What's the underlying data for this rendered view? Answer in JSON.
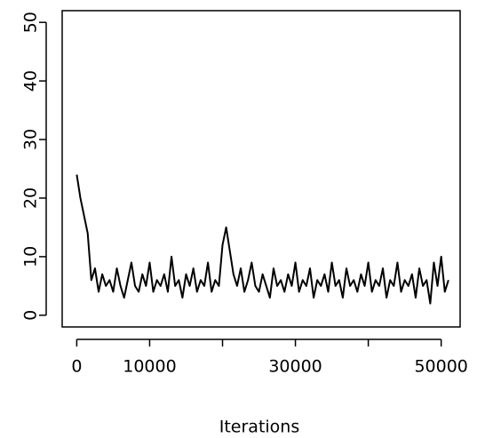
{
  "chart_data": {
    "type": "line",
    "xlabel": "Iterations",
    "x": [
      0,
      500,
      1000,
      1500,
      2000,
      2500,
      3000,
      3500,
      4000,
      4500,
      5000,
      5500,
      6000,
      6500,
      7000,
      7500,
      8000,
      8500,
      9000,
      9500,
      10000,
      10500,
      11000,
      11500,
      12000,
      12500,
      13000,
      13500,
      14000,
      14500,
      15000,
      15500,
      16000,
      16500,
      17000,
      17500,
      18000,
      18500,
      19000,
      19500,
      20000,
      20500,
      21000,
      21500,
      22000,
      22500,
      23000,
      23500,
      24000,
      24500,
      25000,
      25500,
      26000,
      26500,
      27000,
      27500,
      28000,
      28500,
      29000,
      29500,
      30000,
      30500,
      31000,
      31500,
      32000,
      32500,
      33000,
      33500,
      34000,
      34500,
      35000,
      35500,
      36000,
      36500,
      37000,
      37500,
      38000,
      38500,
      39000,
      39500,
      40000,
      40500,
      41000,
      41500,
      42000,
      42500,
      43000,
      43500,
      44000,
      44500,
      45000,
      45500,
      46000,
      46500,
      47000,
      47500,
      48000,
      48500,
      49000,
      49500,
      50000,
      50500,
      51000
    ],
    "values": [
      24,
      20,
      17,
      14,
      6,
      8,
      4,
      7,
      5,
      6,
      4,
      8,
      5,
      3,
      6,
      9,
      5,
      4,
      7,
      5,
      9,
      4,
      6,
      5,
      7,
      4,
      10,
      5,
      6,
      3,
      7,
      5,
      8,
      4,
      6,
      5,
      9,
      4,
      6,
      5,
      12,
      15,
      11,
      7,
      5,
      8,
      4,
      6,
      9,
      5,
      4,
      7,
      5,
      3,
      8,
      5,
      6,
      4,
      7,
      5,
      9,
      4,
      6,
      5,
      8,
      3,
      6,
      5,
      7,
      4,
      9,
      5,
      6,
      3,
      8,
      5,
      6,
      4,
      7,
      5,
      9,
      4,
      6,
      5,
      8,
      3,
      6,
      5,
      9,
      4,
      6,
      5,
      7,
      3,
      8,
      5,
      6,
      2,
      9,
      5,
      10,
      4,
      6
    ],
    "color": "#000000",
    "xlim": [
      -2000,
      52600
    ],
    "ylim": [
      -2,
      52
    ],
    "xticks": [
      0,
      10000,
      {
        "value": 20000,
        "label": null
      },
      30000,
      {
        "value": 40000,
        "label": null
      },
      50000
    ],
    "yticks": [
      0,
      10,
      20,
      30,
      40,
      50
    ]
  }
}
